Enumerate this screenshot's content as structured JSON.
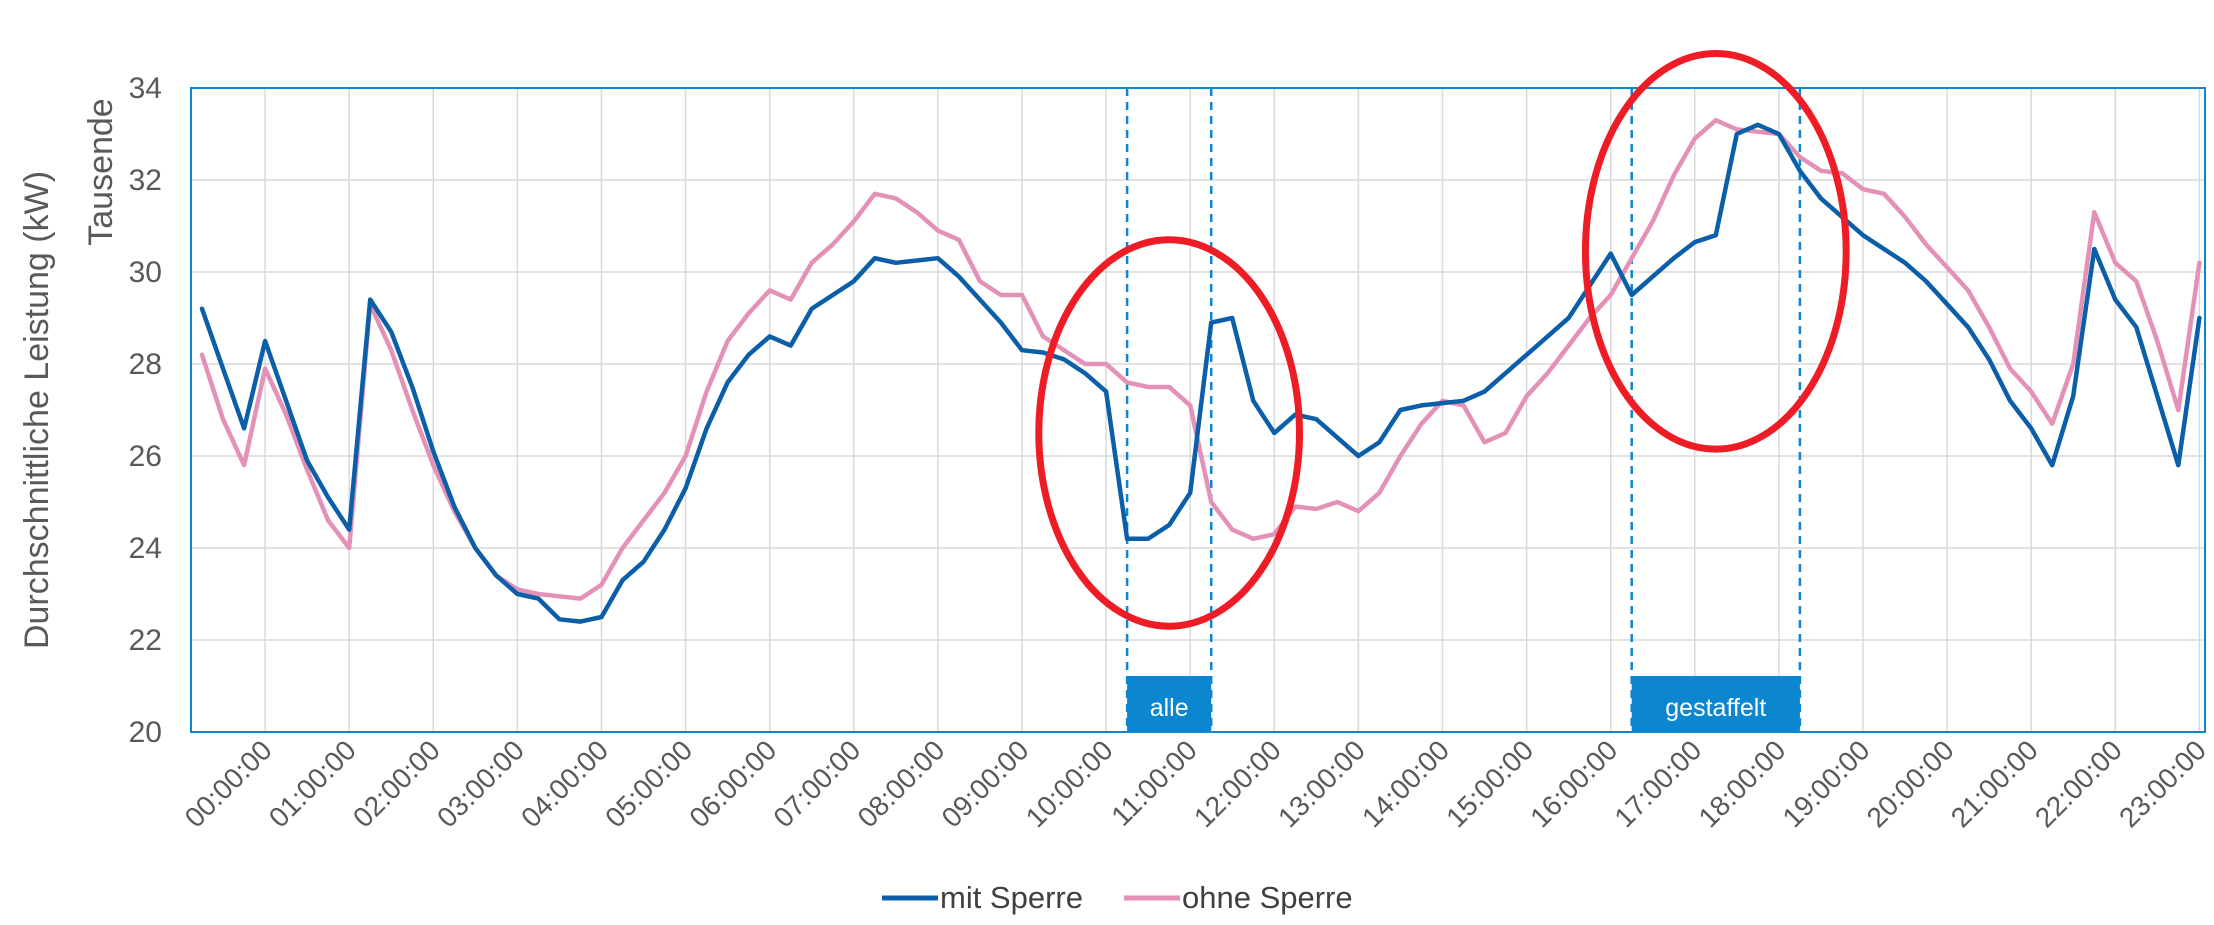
{
  "chart_data": {
    "type": "line",
    "ylabel": "Durchschnittliche Leistung (kW)",
    "yunit_label": "Tausende",
    "ylim": [
      20,
      34
    ],
    "yticks": [
      20,
      22,
      24,
      26,
      28,
      30,
      32,
      34
    ],
    "xlabels": [
      "00:00:00",
      "01:00:00",
      "02:00:00",
      "03:00:00",
      "04:00:00",
      "05:00:00",
      "06:00:00",
      "07:00:00",
      "08:00:00",
      "09:00:00",
      "10:00:00",
      "11:00:00",
      "12:00:00",
      "13:00:00",
      "14:00:00",
      "15:00:00",
      "16:00:00",
      "17:00:00",
      "18:00:00",
      "19:00:00",
      "20:00:00",
      "21:00:00",
      "22:00:00",
      "23:00:00"
    ],
    "grid": true,
    "legend_position": "bottom",
    "series": [
      {
        "name": "mit Sperre",
        "color": "#0b5ea8",
        "x": [
          0,
          0.25,
          0.5,
          0.75,
          1,
          1.25,
          1.5,
          1.75,
          2,
          2.25,
          2.5,
          2.75,
          3,
          3.25,
          3.5,
          3.75,
          4,
          4.25,
          4.5,
          4.75,
          5,
          5.25,
          5.5,
          5.75,
          6,
          6.25,
          6.5,
          6.75,
          7,
          7.25,
          7.5,
          7.75,
          8,
          8.25,
          8.5,
          8.75,
          9,
          9.25,
          9.5,
          9.75,
          10,
          10.25,
          10.5,
          10.75,
          11,
          11.25,
          11.5,
          11.75,
          12,
          12.25,
          12.5,
          12.75,
          13,
          13.25,
          13.5,
          13.75,
          14,
          14.25,
          14.5,
          14.75,
          15,
          15.25,
          15.5,
          15.75,
          16,
          16.25,
          16.5,
          16.75,
          17,
          17.25,
          17.5,
          17.75,
          18,
          18.25,
          18.5,
          18.75,
          19,
          19.25,
          19.5,
          19.75,
          20,
          20.25,
          20.5,
          20.75,
          21,
          21.25,
          21.5,
          21.75,
          22,
          22.25,
          22.5,
          22.75,
          23,
          23.25,
          23.5,
          23.75
        ],
        "values": [
          29.2,
          27.9,
          26.6,
          28.5,
          27.2,
          25.9,
          25.1,
          24.4,
          29.4,
          28.7,
          27.5,
          26.1,
          24.9,
          24.0,
          23.4,
          23.0,
          22.9,
          22.45,
          22.4,
          22.5,
          23.3,
          23.7,
          24.4,
          25.3,
          26.6,
          27.6,
          28.2,
          28.6,
          28.4,
          29.2,
          29.5,
          29.8,
          30.3,
          30.2,
          30.25,
          30.3,
          29.9,
          29.4,
          28.9,
          28.3,
          28.25,
          28.1,
          27.8,
          27.4,
          24.2,
          24.2,
          24.5,
          25.2,
          28.9,
          29.0,
          27.2,
          26.5,
          26.9,
          26.8,
          26.4,
          26.0,
          26.3,
          27.0,
          27.1,
          27.15,
          27.2,
          27.4,
          27.8,
          28.2,
          28.6,
          29.0,
          29.7,
          30.4,
          29.5,
          29.9,
          30.3,
          30.65,
          30.8,
          33.0,
          33.2,
          33.0,
          32.2,
          31.6,
          31.2,
          30.8,
          30.5,
          30.2,
          29.8,
          29.3,
          28.8,
          28.1,
          27.2,
          26.6,
          25.8,
          27.3,
          30.5,
          29.4,
          28.8,
          27.3,
          25.8,
          29.0
        ]
      },
      {
        "name": "ohne Sperre",
        "color": "#e391b7",
        "x": [
          0,
          0.25,
          0.5,
          0.75,
          1,
          1.25,
          1.5,
          1.75,
          2,
          2.25,
          2.5,
          2.75,
          3,
          3.25,
          3.5,
          3.75,
          4,
          4.25,
          4.5,
          4.75,
          5,
          5.25,
          5.5,
          5.75,
          6,
          6.25,
          6.5,
          6.75,
          7,
          7.25,
          7.5,
          7.75,
          8,
          8.25,
          8.5,
          8.75,
          9,
          9.25,
          9.5,
          9.75,
          10,
          10.25,
          10.5,
          10.75,
          11,
          11.25,
          11.5,
          11.75,
          12,
          12.25,
          12.5,
          12.75,
          13,
          13.25,
          13.5,
          13.75,
          14,
          14.25,
          14.5,
          14.75,
          15,
          15.25,
          15.5,
          15.75,
          16,
          16.25,
          16.5,
          16.75,
          17,
          17.25,
          17.5,
          17.75,
          18,
          18.25,
          18.5,
          18.75,
          19,
          19.25,
          19.5,
          19.75,
          20,
          20.25,
          20.5,
          20.75,
          21,
          21.25,
          21.5,
          21.75,
          22,
          22.25,
          22.5,
          22.75,
          23,
          23.25,
          23.5,
          23.75
        ],
        "values": [
          28.2,
          26.8,
          25.8,
          27.9,
          26.9,
          25.7,
          24.6,
          24.0,
          29.3,
          28.3,
          27.0,
          25.8,
          24.8,
          24.0,
          23.4,
          23.1,
          23.0,
          22.95,
          22.9,
          23.2,
          24.0,
          24.6,
          25.2,
          26.0,
          27.4,
          28.5,
          29.1,
          29.6,
          29.4,
          30.2,
          30.6,
          31.1,
          31.7,
          31.6,
          31.3,
          30.9,
          30.7,
          29.8,
          29.5,
          29.5,
          28.6,
          28.3,
          28.0,
          28.0,
          27.6,
          27.5,
          27.5,
          27.1,
          25.0,
          24.4,
          24.2,
          24.3,
          24.9,
          24.85,
          25.0,
          24.8,
          25.2,
          26.0,
          26.7,
          27.2,
          27.1,
          26.3,
          26.5,
          27.3,
          27.8,
          28.4,
          29.0,
          29.5,
          30.3,
          31.1,
          32.1,
          32.9,
          33.3,
          33.1,
          33.05,
          33.0,
          32.5,
          32.2,
          32.15,
          31.8,
          31.7,
          31.2,
          30.6,
          30.1,
          29.6,
          28.8,
          27.9,
          27.4,
          26.7,
          28.0,
          31.3,
          30.2,
          29.8,
          28.5,
          27.0,
          30.2
        ]
      }
    ],
    "periods": [
      {
        "label": "alle",
        "start": 11.0,
        "end": 12.0
      },
      {
        "label": "gestaffelt",
        "start": 17.0,
        "end": 19.0
      }
    ],
    "highlights": [
      {
        "x_center": 11.5,
        "y_center": 26.5,
        "x_radius": 1.55,
        "y_radius": 4.2
      },
      {
        "x_center": 18.0,
        "y_center": 30.45,
        "x_radius": 1.55,
        "y_radius": 4.3
      }
    ]
  },
  "colors": {
    "frame": "#0b86cf",
    "period_line": "#0b86cf",
    "period_box": "#0b86cf",
    "highlight": "#ee1c25",
    "grid": "#d9d9d9"
  }
}
